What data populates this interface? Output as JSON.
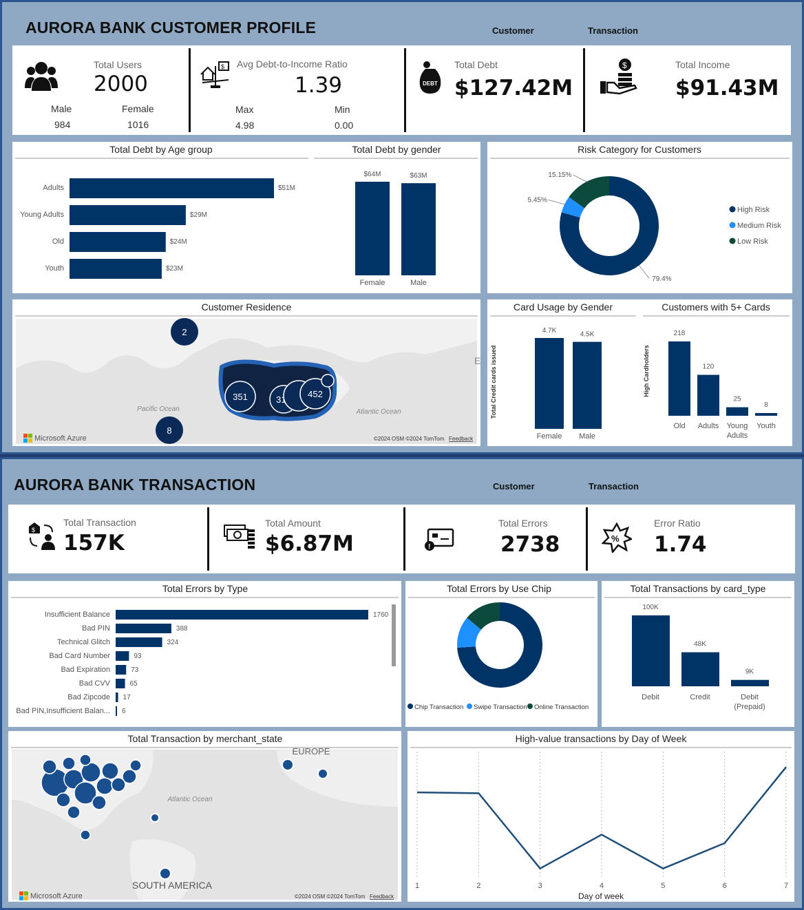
{
  "profile": {
    "title": "AURORA BANK CUSTOMER PROFILE",
    "nav": {
      "customer": "Customer",
      "transaction": "Transaction"
    },
    "kpi": {
      "users_label": "Total Users",
      "users_value": "2000",
      "male_label": "Male",
      "male_value": "984",
      "female_label": "Female",
      "female_value": "1016",
      "dti_label": "Avg Debt-to-Income Ratio",
      "dti_value": "1.39",
      "max_label": "Max",
      "max_value": "4.98",
      "min_label": "Min",
      "min_value": "0.00",
      "debt_label": "Total Debt",
      "debt_value": "$127.42M",
      "income_label": "Total Income",
      "income_value": "$91.43M"
    },
    "icons": {
      "users": "users-icon",
      "dti": "house-scale-icon",
      "debt": "debt-bag-icon",
      "income": "hand-coins-icon"
    },
    "map": {
      "title": "Customer Residence",
      "labels": {
        "pacific": "Pacific Ocean",
        "atlantic": "Atlantic Ocean",
        "edge": "E"
      },
      "bubbles": {
        "b1": "2",
        "b2": "351",
        "b3": "310",
        "b4": "452",
        "b5": "8"
      },
      "attribution": "©2024 OSM  ©2024 TomTom",
      "feedback": "Feedback",
      "brand": "Microsoft Azure"
    }
  },
  "transaction": {
    "title": "AURORA BANK TRANSACTION",
    "nav": {
      "customer": "Customer",
      "transaction": "Transaction"
    },
    "kpi": {
      "total_tx_label": "Total Transaction",
      "total_tx_value": "157K",
      "amount_label": "Total Amount",
      "amount_value": "$6.87M",
      "errors_label": "Total Errors",
      "errors_value": "2738",
      "ratio_label": "Error Ratio",
      "ratio_value": "1.74"
    },
    "icons": {
      "tx": "money-transfer-icon",
      "amount": "cash-stack-icon",
      "errors": "card-error-icon",
      "ratio": "percent-burst-icon"
    },
    "map": {
      "title": "Total Transaction by merchant_state",
      "labels": {
        "europe": "EUROPE",
        "atlantic": "Atlantic Ocean",
        "south_america": "SOUTH AMERICA"
      },
      "attribution": "©2024 OSM  ©2024 TomTom",
      "feedback": "Feedback",
      "brand": "Microsoft Azure"
    }
  },
  "colors": {
    "navy": "#003366",
    "light_blue": "#1e90ff",
    "dark_teal": "#0c4a3e",
    "bg": "#8fa9c4"
  },
  "chart_data": [
    {
      "id": "debt_by_age",
      "type": "bar",
      "orientation": "horizontal",
      "title": "Total Debt by Age group",
      "categories": [
        "Adults",
        "Young Adults",
        "Old",
        "Youth"
      ],
      "values": [
        51,
        29,
        24,
        23
      ],
      "data_labels": [
        "$51M",
        "$29M",
        "$24M",
        "$23M"
      ]
    },
    {
      "id": "debt_by_gender",
      "type": "bar",
      "title": "Total Debt by gender",
      "categories": [
        "Female",
        "Male"
      ],
      "values": [
        64,
        63
      ],
      "data_labels": [
        "$64M",
        "$63M"
      ]
    },
    {
      "id": "risk_category",
      "type": "pie",
      "donut": true,
      "title": "Risk Category for Customers",
      "categories": [
        "High Risk",
        "Medium Risk",
        "Low Risk"
      ],
      "values": [
        79.4,
        5.45,
        15.15
      ],
      "data_labels": [
        "79.4%",
        "5.45%",
        "15.15%"
      ],
      "colors": [
        "#003366",
        "#1e90ff",
        "#0c4a3e"
      ],
      "legend": "right"
    },
    {
      "id": "card_usage_gender",
      "type": "bar",
      "title": "Card Usage by Gender",
      "ylabel": "Total Credit cards issued",
      "categories": [
        "Female",
        "Male"
      ],
      "values": [
        4.7,
        4.5
      ],
      "data_labels": [
        "4.7K",
        "4.5K"
      ]
    },
    {
      "id": "customers_5plus_cards",
      "type": "bar",
      "title": "Customers with 5+ Cards",
      "ylabel": "High Cardholders",
      "categories": [
        "Old",
        "Adults",
        "Young Adults",
        "Youth"
      ],
      "values": [
        218,
        120,
        25,
        8
      ],
      "data_labels": [
        "218",
        "120",
        "25",
        "8"
      ]
    },
    {
      "id": "errors_by_type",
      "type": "bar",
      "orientation": "horizontal",
      "title": "Total Errors by Type",
      "categories": [
        "Insufficient Balance",
        "Bad PIN",
        "Technical Glitch",
        "Bad Card Number",
        "Bad Expiration",
        "Bad CVV",
        "Bad Zipcode",
        "Bad PIN,Insufficient Balan..."
      ],
      "values": [
        1760,
        388,
        324,
        93,
        73,
        65,
        17,
        6
      ],
      "data_labels": [
        "1760",
        "388",
        "324",
        "93",
        "73",
        "65",
        "17",
        "6"
      ]
    },
    {
      "id": "errors_by_chip",
      "type": "pie",
      "donut": true,
      "title": "Total Errors by Use Chip",
      "categories": [
        "Chip Transaction",
        "Swipe Transaction",
        "Online Transaction"
      ],
      "values": [
        74,
        12,
        14
      ],
      "colors": [
        "#003366",
        "#1e90ff",
        "#0c4a3e"
      ],
      "legend": "bottom"
    },
    {
      "id": "tx_by_card_type",
      "type": "bar",
      "title": "Total Transactions by card_type",
      "categories": [
        "Debit",
        "Credit",
        "Debit (Prepaid)"
      ],
      "values": [
        100,
        48,
        9
      ],
      "data_labels": [
        "100K",
        "48K",
        "9K"
      ]
    },
    {
      "id": "high_value_by_dow",
      "type": "line",
      "title": "High-value transactions by Day of Week",
      "xlabel": "Day of week",
      "x": [
        1,
        2,
        3,
        4,
        5,
        6,
        7
      ],
      "values": [
        100,
        99,
        10,
        50,
        10,
        40,
        130
      ],
      "grid": true
    }
  ]
}
